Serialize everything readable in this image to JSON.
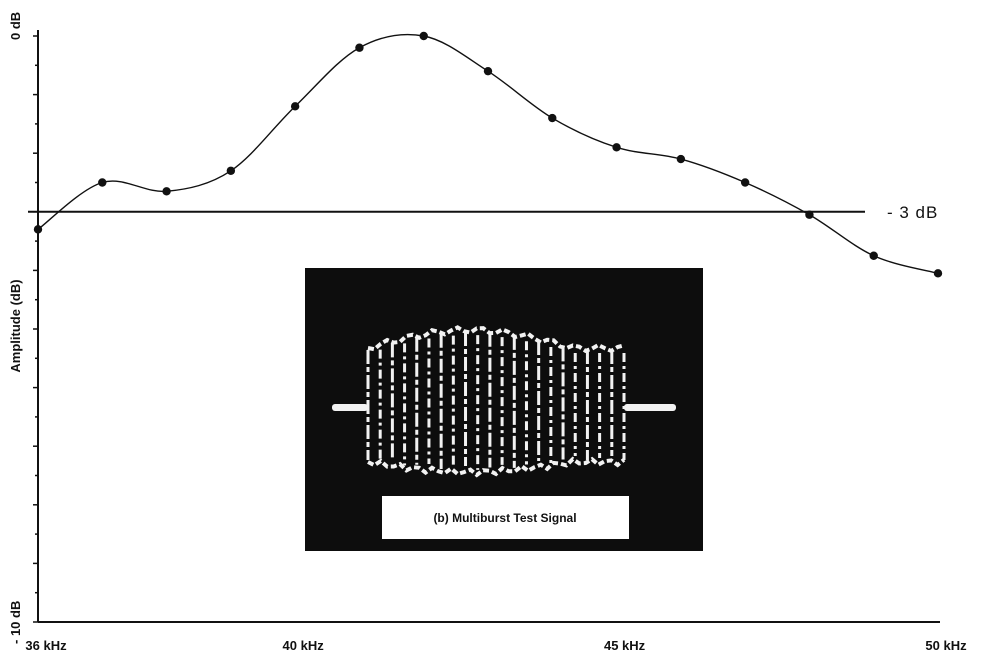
{
  "chart_data": {
    "type": "line",
    "x_unit": "kHz",
    "x": [
      36,
      37,
      38,
      39,
      40,
      41,
      42,
      43,
      44,
      45,
      46,
      47,
      48,
      49,
      50
    ],
    "series": [
      {
        "values": [
          -3.3,
          -2.5,
          -2.65,
          -2.3,
          -1.2,
          -0.2,
          0.0,
          -0.6,
          -1.4,
          -1.9,
          -2.1,
          -2.5,
          -3.05,
          -3.75,
          -4.05
        ]
      }
    ],
    "reference_line": {
      "y": -3,
      "label": "- 3 dB"
    },
    "xlim": [
      36,
      50
    ],
    "ylim": [
      -10,
      0
    ],
    "x_tick_labels": [
      {
        "x": 36,
        "label": "36 kHz"
      },
      {
        "x": 40,
        "label": "40 kHz"
      },
      {
        "x": 45,
        "label": "45 kHz"
      },
      {
        "x": 50,
        "label": "50 kHz"
      }
    ],
    "y_tick_top_label": "0 dB",
    "y_tick_bottom_label": "- 10 dB",
    "ylabel": "Amplitude (dB)",
    "grid": false,
    "inset": {
      "caption": "(b)   Multiburst Test Signal",
      "background": "#0d0d0d"
    },
    "colors": {
      "line": "#111111",
      "marker": "#111111",
      "inset_bg": "#0d0d0d",
      "signal": "#f2f2f2"
    }
  }
}
